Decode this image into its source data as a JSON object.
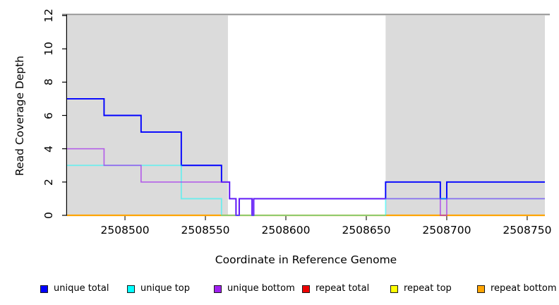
{
  "figure": {
    "background": "#FFFFFF"
  },
  "chart_data": {
    "type": "step-line",
    "title": "",
    "xlabel": "Coordinate in Reference Genome",
    "ylabel": "Read Coverage Depth",
    "xlim": [
      2508464,
      2508761
    ],
    "ylim": [
      0,
      12
    ],
    "x_ticks": [
      2508500,
      2508550,
      2508600,
      2508650,
      2508700,
      2508750
    ],
    "y_ticks": [
      0,
      2,
      4,
      6,
      8,
      10,
      12
    ],
    "grid": "off",
    "legend_position": "bottom",
    "shade_color": "#DBDBDB",
    "top_border_color": "#8F8F8F",
    "shaded_regions": [
      {
        "start": 2508464,
        "end": 2508564
      },
      {
        "start": 2508662,
        "end": 2508761
      }
    ],
    "x_end": 2508761,
    "series": [
      {
        "name": "unique total",
        "color": "#0000FF",
        "points": [
          [
            2508464,
            7
          ],
          [
            2508487,
            6
          ],
          [
            2508510,
            5
          ],
          [
            2508535,
            3
          ],
          [
            2508560,
            2
          ],
          [
            2508565,
            1
          ],
          [
            2508569,
            0
          ],
          [
            2508571,
            1
          ],
          [
            2508579,
            0
          ],
          [
            2508580,
            1
          ],
          [
            2508662,
            2
          ],
          [
            2508696,
            1
          ],
          [
            2508700,
            2
          ]
        ]
      },
      {
        "name": "unique top",
        "color": "#00FFFF",
        "points": [
          [
            2508464,
            3
          ],
          [
            2508535,
            1
          ],
          [
            2508560,
            0
          ],
          [
            2508662,
            1
          ]
        ]
      },
      {
        "name": "unique bottom",
        "color": "#A020F0",
        "points": [
          [
            2508464,
            4
          ],
          [
            2508487,
            3
          ],
          [
            2508510,
            2
          ],
          [
            2508565,
            1
          ],
          [
            2508569,
            0
          ],
          [
            2508571,
            1
          ],
          [
            2508579,
            0
          ],
          [
            2508580,
            1
          ],
          [
            2508696,
            0
          ],
          [
            2508700,
            1
          ]
        ]
      },
      {
        "name": "repeat total",
        "color": "#EE0000",
        "points": [
          [
            2508464,
            0
          ]
        ]
      },
      {
        "name": "repeat top",
        "color": "#FFFF00",
        "points": [
          [
            2508464,
            0
          ]
        ]
      },
      {
        "name": "repeat bottom",
        "color": "#FFA500",
        "points": [
          [
            2508464,
            0
          ]
        ]
      }
    ]
  }
}
